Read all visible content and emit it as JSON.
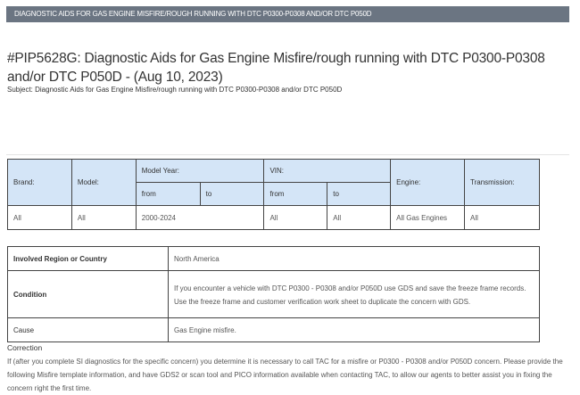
{
  "banner": "DIAGNOSTIC AIDS FOR GAS ENGINE MISFIRE/ROUGH RUNNING WITH DTC P0300-P0308 AND/OR DTC P050D",
  "title": "#PIP5628G: Diagnostic Aids for Gas Engine Misfire/rough running with DTC P0300-P0308 and/or DTC P050D - (Aug 10, 2023)",
  "subject": "Subject: Diagnostic Aids for Gas Engine Misfire/rough running with DTC P0300-P0308 and/or DTC P050D",
  "vehicle_table": {
    "headers": {
      "brand": "Brand:",
      "model": "Model:",
      "model_year": "Model Year:",
      "vin": "VIN:",
      "engine": "Engine:",
      "transmission": "Transmission:",
      "from": "from",
      "to": "to"
    },
    "row": {
      "brand": "All",
      "model": "All",
      "model_year": "2000-2024",
      "vin_from": "All",
      "vin_to": "All",
      "engine": "All Gas Engines",
      "transmission": "All"
    }
  },
  "info_table": [
    {
      "label": "Involved Region or Country",
      "lines": [
        "North America"
      ]
    },
    {
      "label": "Condition",
      "lines": [
        "If you encounter a vehicle with DTC P0300 - P0308 and/or P050D use GDS and save the freeze frame records.",
        "Use the freeze frame and customer verification work sheet to duplicate the concern with GDS."
      ]
    },
    {
      "label": "Cause",
      "lines": [
        "Gas Engine misfire."
      ]
    }
  ],
  "correction": {
    "heading": "Correction",
    "text": "If (after you complete SI diagnostics for the specific concern) you determine it is necessary to call TAC for a misfire or P0300 - P0308 and/or P050D concern. Please provide the following Misfire template information, and have GDS2 or scan tool and PICO information available when contacting TAC, to allow our agents to better assist you in fixing the concern right the first time."
  }
}
